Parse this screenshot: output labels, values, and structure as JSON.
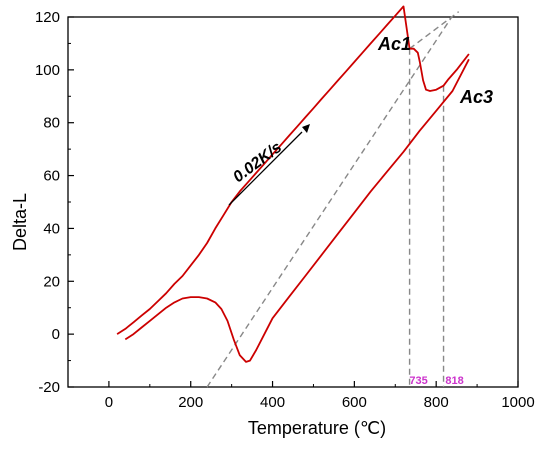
{
  "chart_data": {
    "type": "line",
    "xlabel": "Temperature (℃)",
    "ylabel": "Delta-L",
    "xlim": [
      -100,
      1000
    ],
    "ylim": [
      -20,
      120
    ],
    "xticks": [
      0,
      200,
      400,
      600,
      800,
      1000
    ],
    "yticks": [
      -20,
      0,
      20,
      40,
      60,
      80,
      100,
      120
    ],
    "grid": false,
    "series": [
      {
        "color": "#cc0000",
        "x": [
          20,
          40,
          60,
          80,
          100,
          120,
          140,
          160,
          180,
          200,
          220,
          240,
          260,
          280,
          300,
          320,
          340,
          360,
          380,
          400,
          420,
          440,
          460,
          480,
          500,
          520,
          540,
          560,
          580,
          600,
          620,
          640,
          660,
          680,
          700,
          720,
          735,
          745,
          755,
          760,
          768,
          775,
          785,
          800,
          818,
          830,
          850,
          870,
          880
        ],
        "y": [
          0,
          2,
          4.5,
          7,
          9.5,
          12.5,
          15.5,
          19,
          22,
          26,
          30,
          34.5,
          40,
          45,
          50,
          54,
          57.5,
          61,
          64.5,
          68,
          71.5,
          75,
          78.5,
          82,
          85.5,
          89,
          92.5,
          96,
          99.5,
          103,
          106.5,
          110,
          113.5,
          117,
          120.5,
          124,
          108,
          108,
          106.5,
          103,
          96,
          92.5,
          92,
          92.5,
          94,
          96.5,
          100,
          104,
          106
        ]
      },
      {
        "color": "#cc0000",
        "x": [
          40,
          60,
          80,
          100,
          120,
          140,
          160,
          180,
          200,
          220,
          240,
          260,
          275,
          290,
          305,
          320,
          335,
          345,
          360,
          380,
          400,
          440,
          480,
          520,
          560,
          600,
          640,
          680,
          720,
          760,
          800,
          840,
          880
        ],
        "y": [
          -2,
          0,
          2.5,
          5,
          7.5,
          10,
          12,
          13.5,
          14,
          14,
          13.5,
          12,
          9.5,
          5,
          -2,
          -8,
          -10.5,
          -10,
          -6,
          0,
          6,
          14,
          22,
          30,
          38,
          46,
          54,
          61.5,
          69,
          77,
          84.5,
          92,
          104
        ]
      }
    ],
    "annotations": {
      "rate": "0.02K/s",
      "ac1": "Ac1",
      "ac3": "Ac3",
      "ac1_temp": "735",
      "ac3_temp": "818",
      "label_color": "#cc33cc"
    }
  }
}
